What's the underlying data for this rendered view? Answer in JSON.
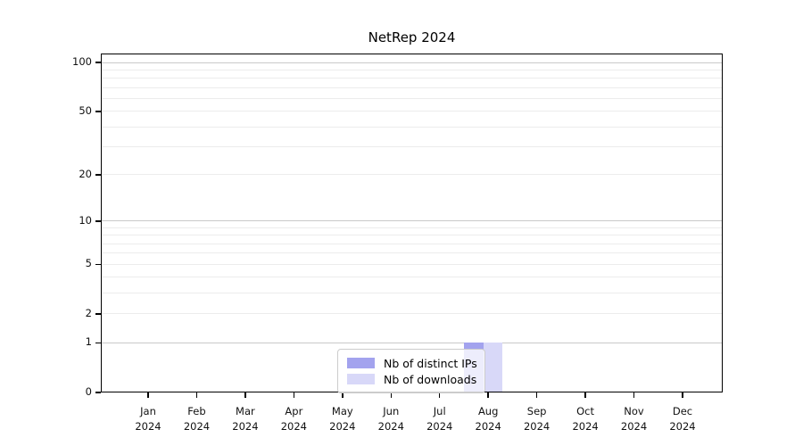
{
  "title": "NetRep 2024",
  "chart_data": {
    "type": "bar",
    "title": "NetRep 2024",
    "x_tick_year": "2024",
    "x_tick_months": [
      "Jan",
      "Feb",
      "Mar",
      "Apr",
      "May",
      "Jun",
      "Jul",
      "Aug",
      "Sep",
      "Oct",
      "Nov",
      "Dec"
    ],
    "y_scale": "log1p",
    "ylim": [
      0,
      114
    ],
    "y_tick_values": [
      0,
      1,
      2,
      5,
      10,
      20,
      50,
      100
    ],
    "y_tick_labels": [
      "0",
      "1",
      "2",
      "5",
      "10",
      "20",
      "50",
      "100"
    ],
    "y_major_gridlines": [
      1,
      10,
      100
    ],
    "y_minor_gridlines": [
      2,
      3,
      4,
      5,
      6,
      7,
      8,
      9,
      20,
      30,
      40,
      50,
      60,
      70,
      80,
      90
    ],
    "grid": true,
    "legend_position": "lower center",
    "series": [
      {
        "name": "Nb of distinct IPs",
        "color": "#a3a3ee",
        "values": [
          0,
          0,
          0,
          0,
          0,
          0,
          0,
          1,
          0,
          0,
          0,
          0
        ]
      },
      {
        "name": "Nb of downloads",
        "color": "#d8d8f8",
        "values": [
          0,
          0,
          0,
          0,
          0,
          0,
          0,
          1,
          0,
          0,
          0,
          0
        ]
      }
    ]
  },
  "legend": {
    "items": [
      {
        "label": "Nb of distinct IPs",
        "color": "#a3a3ee"
      },
      {
        "label": "Nb of downloads",
        "color": "#d8d8f8"
      }
    ]
  },
  "colors": {
    "bar_distinct_ips": "#a3a3ee",
    "bar_downloads": "#d8d8f8",
    "grid_major": "#c9c9c9",
    "grid_minor": "#ececec",
    "axis": "#000000",
    "background": "#ffffff"
  }
}
